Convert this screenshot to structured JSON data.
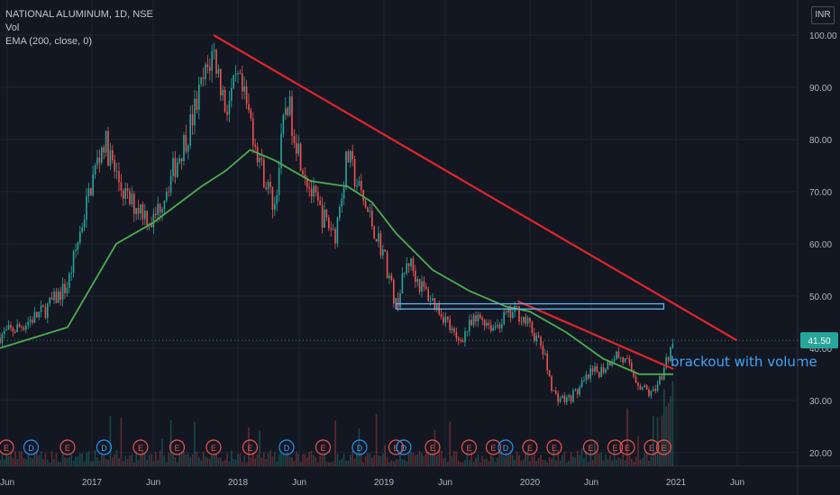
{
  "legend": {
    "symbol": "NATIONAL ALUMINUM, 1D, NSE",
    "volume": "Vol",
    "ema": "EMA (200, close, 0)"
  },
  "currency": "INR",
  "price_tag": "41.50",
  "annotation": "brackout with volume",
  "colors": {
    "background": "#131722",
    "up_candle": "#26a69a",
    "down_candle": "#ef5350",
    "ema_line": "#4caf50",
    "trendline": "#e0252b",
    "resistance_box": "#64b5f6",
    "price_tag_bg": "#26a69a",
    "annotation": "#42a5f5"
  },
  "chart_data": {
    "type": "candlestick",
    "y_axis": {
      "ticks": [
        "100.00",
        "90.00",
        "80.00",
        "70.00",
        "60.00",
        "50.00",
        "40.00",
        "30.00",
        "20.00"
      ],
      "range": [
        17,
        104
      ]
    },
    "x_axis": {
      "ticks": [
        "Jun",
        "2017",
        "Jun",
        "2018",
        "Jun",
        "2019",
        "Jun",
        "2020",
        "Jun",
        "2021",
        "Jun"
      ]
    },
    "price_path": [
      [
        "2016-05",
        42
      ],
      [
        "2016-07",
        44
      ],
      [
        "2016-09",
        47
      ],
      [
        "2016-11",
        52
      ],
      [
        "2016-12",
        62
      ],
      [
        "2017-01",
        72
      ],
      [
        "2017-02",
        80
      ],
      [
        "2017-03",
        73
      ],
      [
        "2017-04",
        68
      ],
      [
        "2017-05",
        67
      ],
      [
        "2017-06",
        64
      ],
      [
        "2017-07",
        70
      ],
      [
        "2017-08",
        76
      ],
      [
        "2017-09",
        82
      ],
      [
        "2017-10",
        90
      ],
      [
        "2017-11",
        97
      ],
      [
        "2017-12",
        86
      ],
      [
        "2018-01",
        91
      ],
      [
        "2018-02",
        84
      ],
      [
        "2018-03",
        74
      ],
      [
        "2018-04",
        67
      ],
      [
        "2018-05",
        88
      ],
      [
        "2018-06",
        78
      ],
      [
        "2018-07",
        70
      ],
      [
        "2018-08",
        65
      ],
      [
        "2018-09",
        62
      ],
      [
        "2018-10",
        77
      ],
      [
        "2018-11",
        70
      ],
      [
        "2018-12",
        64
      ],
      [
        "2019-01",
        58
      ],
      [
        "2019-02",
        48
      ],
      [
        "2019-03",
        57
      ],
      [
        "2019-04",
        52
      ],
      [
        "2019-05",
        49
      ],
      [
        "2019-06",
        46
      ],
      [
        "2019-07",
        41
      ],
      [
        "2019-08",
        44
      ],
      [
        "2019-09",
        46
      ],
      [
        "2019-10",
        44
      ],
      [
        "2019-11",
        46
      ],
      [
        "2019-12",
        47
      ],
      [
        "2020-01",
        44
      ],
      [
        "2020-02",
        40
      ],
      [
        "2020-03",
        31
      ],
      [
        "2020-04",
        30
      ],
      [
        "2020-05",
        32
      ],
      [
        "2020-06",
        35
      ],
      [
        "2020-07",
        36
      ],
      [
        "2020-08",
        39
      ],
      [
        "2020-09",
        37
      ],
      [
        "2020-10",
        33
      ],
      [
        "2020-11",
        31
      ],
      [
        "2020-12",
        36
      ],
      [
        "2020-12-25",
        41.5
      ]
    ],
    "ema_200": [
      [
        "2016-05",
        40
      ],
      [
        "2016-11",
        44
      ],
      [
        "2017-03",
        60
      ],
      [
        "2017-06",
        64
      ],
      [
        "2017-10",
        71
      ],
      [
        "2017-12",
        74
      ],
      [
        "2018-02",
        78
      ],
      [
        "2018-04",
        76
      ],
      [
        "2018-07",
        72
      ],
      [
        "2018-10",
        71
      ],
      [
        "2018-12",
        68
      ],
      [
        "2019-02",
        62
      ],
      [
        "2019-05",
        55
      ],
      [
        "2019-08",
        51
      ],
      [
        "2019-11",
        48
      ],
      [
        "2020-01",
        47
      ],
      [
        "2020-04",
        43
      ],
      [
        "2020-07",
        38
      ],
      [
        "2020-10",
        35
      ],
      [
        "2020-12-25",
        35
      ]
    ],
    "trendline_long": {
      "from": [
        "2017-11",
        100
      ],
      "to": [
        "2021-06",
        41.5
      ]
    },
    "trendline_short": {
      "from": [
        "2019-12",
        49
      ],
      "to": [
        "2020-12-25",
        36
      ]
    },
    "resistance_zone": {
      "from": "2019-02",
      "to": "2020-12",
      "low": 47.5,
      "high": 48.5
    },
    "last_price": 41.5,
    "earnings_markers": [
      {
        "date": "2016-05",
        "label": "E"
      },
      {
        "date": "2016-08",
        "label": "D"
      },
      {
        "date": "2016-11",
        "label": "E"
      },
      {
        "date": "2017-02",
        "label": "D"
      },
      {
        "date": "2017-05",
        "label": "E"
      },
      {
        "date": "2017-08",
        "label": "E"
      },
      {
        "date": "2017-11",
        "label": "E"
      },
      {
        "date": "2018-02",
        "label": "E"
      },
      {
        "date": "2018-05",
        "label": "D"
      },
      {
        "date": "2018-08",
        "label": "E"
      },
      {
        "date": "2018-11",
        "label": "D"
      },
      {
        "date": "2019-02",
        "label": "E"
      },
      {
        "date": "2019-02-20",
        "label": "D"
      },
      {
        "date": "2019-05",
        "label": "E"
      },
      {
        "date": "2019-08",
        "label": "E"
      },
      {
        "date": "2019-10",
        "label": "E"
      },
      {
        "date": "2019-11",
        "label": "D"
      },
      {
        "date": "2020-01",
        "label": "E"
      },
      {
        "date": "2020-03",
        "label": "E"
      },
      {
        "date": "2020-06",
        "label": "E"
      },
      {
        "date": "2020-08",
        "label": "E"
      },
      {
        "date": "2020-09",
        "label": "E"
      },
      {
        "date": "2020-11",
        "label": "E"
      },
      {
        "date": "2020-12",
        "label": "E"
      }
    ]
  }
}
